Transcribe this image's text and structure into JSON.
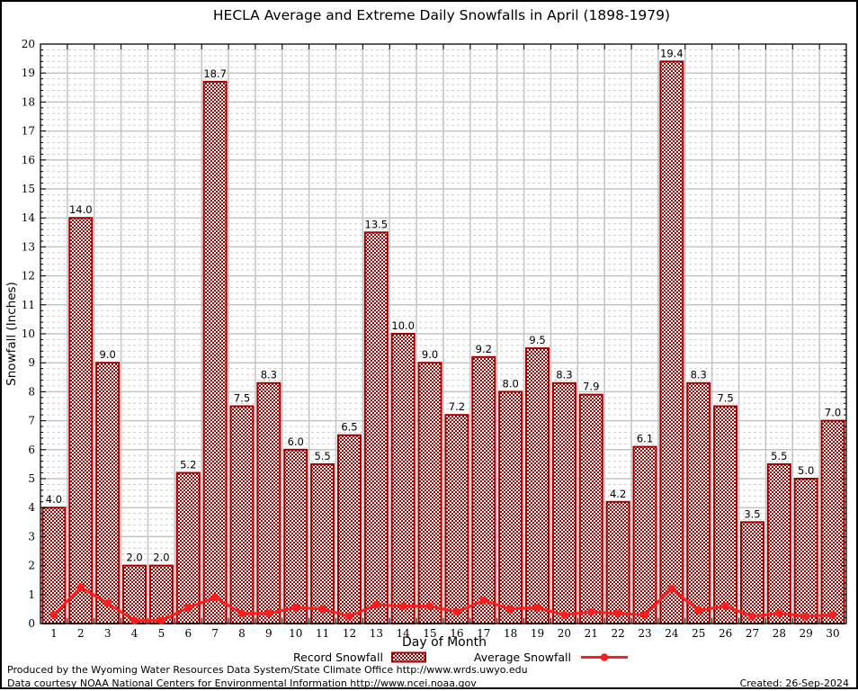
{
  "page": {
    "footer": {
      "line1": "Produced by the Wyoming Water Resources Data System/State Climate Office http://www.wrds.uwyo.edu",
      "line2": "Data courtesy NOAA National Centers for Environmental Information http://www.ncei.noaa.gov",
      "created": "Created: 26-Sep-2024"
    }
  },
  "chart_data": {
    "type": "bar",
    "title": "HECLA Average and Extreme Daily Snowfalls in April (1898-1979)",
    "xlabel": "Day of Month",
    "ylabel": "Snowfall (Inches)",
    "ylim": [
      0,
      20
    ],
    "y_major_step": 1,
    "y_minor_step": 0.2,
    "grid": "on",
    "legend_position": "bottom",
    "categories": [
      1,
      2,
      3,
      4,
      5,
      6,
      7,
      8,
      9,
      10,
      11,
      12,
      13,
      14,
      15,
      16,
      17,
      18,
      19,
      20,
      21,
      22,
      23,
      24,
      25,
      26,
      27,
      28,
      29,
      30
    ],
    "series": [
      {
        "name": "Record Snowfall",
        "type": "bar",
        "color": "#a40000",
        "values": [
          4.0,
          14.0,
          9.0,
          2.0,
          2.0,
          5.2,
          18.7,
          7.5,
          8.3,
          6.0,
          5.5,
          6.5,
          13.5,
          10.0,
          9.0,
          7.2,
          9.2,
          8.0,
          9.5,
          8.3,
          7.9,
          4.2,
          6.1,
          19.4,
          8.3,
          7.5,
          3.5,
          5.5,
          5.0,
          7.0
        ]
      },
      {
        "name": "Average Snowfall",
        "type": "line",
        "color": "#ff1c1c",
        "values": [
          0.3,
          1.25,
          0.7,
          0.1,
          0.1,
          0.55,
          0.9,
          0.35,
          0.35,
          0.55,
          0.5,
          0.25,
          0.65,
          0.6,
          0.6,
          0.4,
          0.8,
          0.5,
          0.55,
          0.3,
          0.4,
          0.35,
          0.3,
          1.2,
          0.45,
          0.6,
          0.25,
          0.35,
          0.25,
          0.3
        ]
      }
    ],
    "colors": {
      "grid_major": "#c4c4c4",
      "grid_minor": "#cccccc",
      "axis": "#000000",
      "bar_fill_bg": "#ffffff"
    }
  }
}
